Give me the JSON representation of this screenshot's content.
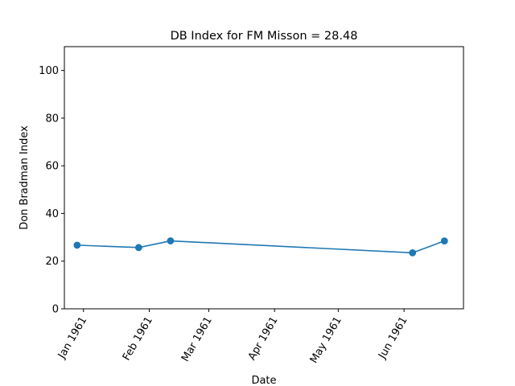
{
  "chart_data": {
    "type": "line",
    "title": "DB Index for FM Misson = 28.48",
    "xlabel": "Date",
    "ylabel": "Don Bradman Index",
    "ylim": [
      0,
      110
    ],
    "xlim": [
      "1960-12-23",
      "1961-06-29"
    ],
    "y_ticks": [
      0,
      20,
      40,
      60,
      80,
      100
    ],
    "x_ticks": [
      {
        "date": "1961-01-01",
        "label": "Jan 1961"
      },
      {
        "date": "1961-02-01",
        "label": "Feb 1961"
      },
      {
        "date": "1961-03-01",
        "label": "Mar 1961"
      },
      {
        "date": "1961-04-01",
        "label": "Apr 1961"
      },
      {
        "date": "1961-05-01",
        "label": "May 1961"
      },
      {
        "date": "1961-06-01",
        "label": "Jun 1961"
      }
    ],
    "grid": false,
    "legend": "none",
    "series": [
      {
        "color": "#1f77b4",
        "marker": "circle",
        "points": [
          {
            "x": "1960-12-29",
            "y": 26.7
          },
          {
            "x": "1961-01-27",
            "y": 25.7
          },
          {
            "x": "1961-02-11",
            "y": 28.5
          },
          {
            "x": "1961-06-05",
            "y": 23.5
          },
          {
            "x": "1961-06-20",
            "y": 28.48
          }
        ]
      }
    ]
  }
}
